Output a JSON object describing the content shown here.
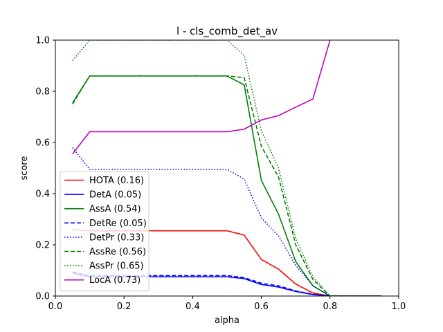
{
  "chart_data": {
    "type": "line",
    "title": "l - cls_comb_det_av",
    "xlabel": "alpha",
    "ylabel": "score",
    "xlim": [
      0.0,
      1.0
    ],
    "ylim": [
      0.0,
      1.0
    ],
    "xticks": [
      "0.0",
      "0.2",
      "0.4",
      "0.6",
      "0.8",
      "1.0"
    ],
    "yticks": [
      "0.0",
      "0.2",
      "0.4",
      "0.6",
      "0.8",
      "1.0"
    ],
    "grid": false,
    "legend_position": "lower-left",
    "x": [
      0.05,
      0.1,
      0.15,
      0.2,
      0.25,
      0.3,
      0.35,
      0.4,
      0.45,
      0.5,
      0.55,
      0.6,
      0.65,
      0.7,
      0.75,
      0.8,
      0.85,
      0.9,
      0.95
    ],
    "series": [
      {
        "name": "HOTA (0.16)",
        "color": "#ff0000",
        "dash": "solid",
        "values": [
          0.26,
          0.255,
          0.255,
          0.255,
          0.255,
          0.255,
          0.255,
          0.255,
          0.255,
          0.255,
          0.238,
          0.143,
          0.105,
          0.047,
          0.012,
          0.0,
          0.0,
          0.0,
          0.0
        ]
      },
      {
        "name": "DetA (0.05)",
        "color": "#0000ff",
        "dash": "solid",
        "values": [
          0.09,
          0.075,
          0.075,
          0.075,
          0.075,
          0.075,
          0.075,
          0.075,
          0.075,
          0.075,
          0.068,
          0.045,
          0.035,
          0.018,
          0.006,
          0.0,
          0.0,
          0.0,
          0.0
        ]
      },
      {
        "name": "AssA (0.54)",
        "color": "#008000",
        "dash": "solid",
        "values": [
          0.755,
          0.86,
          0.86,
          0.86,
          0.86,
          0.86,
          0.86,
          0.86,
          0.86,
          0.86,
          0.825,
          0.452,
          0.32,
          0.135,
          0.04,
          0.0,
          0.0,
          0.0,
          0.0
        ]
      },
      {
        "name": "DetRe (0.05)",
        "color": "#0000ff",
        "dash": "dashed",
        "values": [
          0.094,
          0.08,
          0.08,
          0.08,
          0.08,
          0.08,
          0.08,
          0.08,
          0.08,
          0.08,
          0.072,
          0.05,
          0.04,
          0.02,
          0.007,
          0.0,
          0.0,
          0.0,
          0.0
        ]
      },
      {
        "name": "DetPr (0.33)",
        "color": "#0000ff",
        "dash": "dotted",
        "values": [
          0.58,
          0.495,
          0.495,
          0.495,
          0.495,
          0.495,
          0.495,
          0.495,
          0.495,
          0.495,
          0.457,
          0.305,
          0.235,
          0.12,
          0.04,
          0.0,
          0.0,
          0.0,
          0.0
        ]
      },
      {
        "name": "AssRe (0.56)",
        "color": "#008000",
        "dash": "dashed",
        "values": [
          0.75,
          0.86,
          0.86,
          0.86,
          0.86,
          0.86,
          0.86,
          0.86,
          0.86,
          0.86,
          0.853,
          0.585,
          0.465,
          0.2,
          0.065,
          0.0,
          0.0,
          0.0,
          0.0
        ]
      },
      {
        "name": "AssPr (0.65)",
        "color": "#008000",
        "dash": "dotted",
        "values": [
          0.92,
          1.0,
          1.0,
          1.0,
          1.0,
          1.0,
          1.0,
          1.0,
          1.0,
          1.0,
          0.94,
          0.645,
          0.5,
          0.225,
          0.075,
          0.0,
          0.0,
          0.0,
          0.0
        ]
      },
      {
        "name": "LocA (0.73)",
        "color": "#bf00bf",
        "dash": "solid",
        "values": [
          0.555,
          0.642,
          0.642,
          0.642,
          0.642,
          0.642,
          0.642,
          0.642,
          0.642,
          0.642,
          0.652,
          0.688,
          0.705,
          0.738,
          0.77,
          1.0,
          null,
          null,
          null
        ]
      }
    ]
  }
}
